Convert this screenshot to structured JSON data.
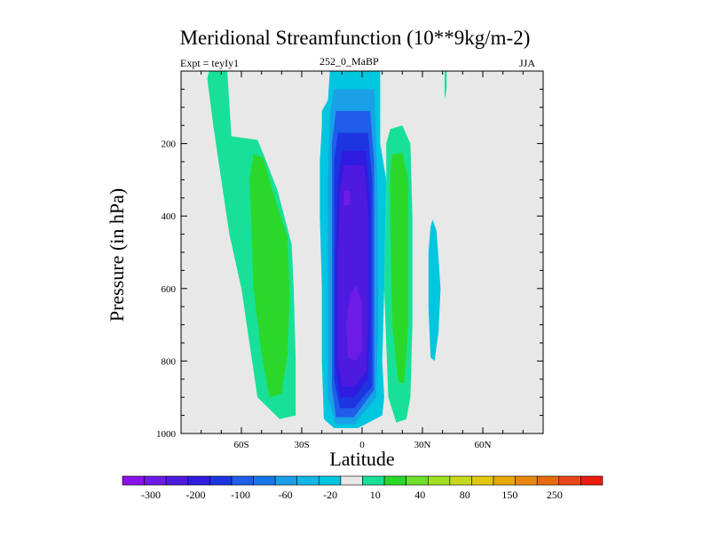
{
  "chart_data": {
    "type": "heatmap",
    "title": "Meridional Streamfunction (10**9kg/m-2)",
    "subtitle_left": "Expt = teyIy1",
    "subtitle_center": "252_0_MaBP",
    "subtitle_right": "JJA",
    "xlabel": "Latitude",
    "ylabel": "Pressure (in hPa)",
    "xlim": [
      -90,
      90
    ],
    "ylim": [
      1000,
      0
    ],
    "x_ticks": [
      {
        "value": -60,
        "label": "60S"
      },
      {
        "value": -30,
        "label": "30S"
      },
      {
        "value": 0,
        "label": "0"
      },
      {
        "value": 30,
        "label": "30N"
      },
      {
        "value": 60,
        "label": "60N"
      }
    ],
    "y_ticks": [
      {
        "value": 200,
        "label": "200"
      },
      {
        "value": 400,
        "label": "400"
      },
      {
        "value": 600,
        "label": "600"
      },
      {
        "value": 800,
        "label": "800"
      },
      {
        "value": 1000,
        "label": "1000"
      }
    ],
    "background_color": "#e8e8e8",
    "colorbar": {
      "colors": [
        "#8a12e8",
        "#6d1be6",
        "#4f1ae0",
        "#2f1ce0",
        "#1c35e0",
        "#1e5ee8",
        "#1877e8",
        "#1aa0e6",
        "#13b7e6",
        "#00c6e0",
        "#e8e8e8",
        "#18e098",
        "#2ad82a",
        "#6ee02a",
        "#a0e01e",
        "#c8d81c",
        "#e0c810",
        "#e8a808",
        "#e88810",
        "#e86a10",
        "#e84818",
        "#e81e10"
      ],
      "labels": [
        "-300",
        "-200",
        "-100",
        "-60",
        "-20",
        "10",
        "40",
        "80",
        "150",
        "250"
      ]
    },
    "regions": [
      {
        "name": "shaded-10-40-sh-tall",
        "level": "10 to 40",
        "color": "#18e098",
        "points": [
          [
            -76,
            0
          ],
          [
            -67,
            0
          ],
          [
            -65,
            180
          ],
          [
            -52,
            190
          ],
          [
            -49,
            230
          ],
          [
            -42,
            330
          ],
          [
            -35,
            480
          ],
          [
            -34,
            600
          ],
          [
            -33,
            800
          ],
          [
            -33,
            950
          ],
          [
            -41,
            960
          ],
          [
            -52,
            900
          ],
          [
            -60,
            600
          ],
          [
            -66,
            450
          ],
          [
            -70,
            300
          ],
          [
            -74,
            150
          ],
          [
            -77,
            20
          ]
        ]
      },
      {
        "name": "shaded-40-80-sh",
        "level": "40 to 80",
        "color": "#2ad82a",
        "points": [
          [
            -54,
            230
          ],
          [
            -49,
            240
          ],
          [
            -44,
            340
          ],
          [
            -37,
            460
          ],
          [
            -36,
            620
          ],
          [
            -37,
            780
          ],
          [
            -40,
            890
          ],
          [
            -46,
            900
          ],
          [
            -50,
            780
          ],
          [
            -54,
            600
          ],
          [
            -55,
            420
          ],
          [
            -56,
            300
          ]
        ]
      },
      {
        "name": "shaded-minus20-minus10-tropics",
        "level": "-20 to -10",
        "color": "#00c6e0",
        "points": [
          [
            -16,
            0
          ],
          [
            9,
            0
          ],
          [
            9,
            200
          ],
          [
            12,
            300
          ],
          [
            11,
            600
          ],
          [
            10,
            800
          ],
          [
            11,
            900
          ],
          [
            10,
            950
          ],
          [
            -2,
            985
          ],
          [
            -14,
            985
          ],
          [
            -19,
            960
          ],
          [
            -20,
            800
          ],
          [
            -20,
            600
          ],
          [
            -21,
            400
          ],
          [
            -21,
            250
          ],
          [
            -20,
            150
          ],
          [
            -20,
            110
          ],
          [
            -17,
            80
          ]
        ]
      },
      {
        "name": "shaded-minus60-minus20",
        "level": "-60 to -20",
        "color": "#1aa0e6",
        "points": [
          [
            -14,
            50
          ],
          [
            6,
            50
          ],
          [
            7,
            200
          ],
          [
            8,
            400
          ],
          [
            8,
            700
          ],
          [
            7,
            900
          ],
          [
            -4,
            975
          ],
          [
            -13,
            975
          ],
          [
            -17,
            900
          ],
          [
            -17,
            600
          ],
          [
            -17,
            300
          ],
          [
            -16,
            120
          ]
        ]
      },
      {
        "name": "shaded-minus60-minus40",
        "level": "-60 to -40",
        "color": "#1e5ee8",
        "points": [
          [
            -13,
            110
          ],
          [
            4,
            110
          ],
          [
            6,
            250
          ],
          [
            6,
            700
          ],
          [
            6,
            880
          ],
          [
            -4,
            955
          ],
          [
            -13,
            955
          ],
          [
            -15,
            870
          ],
          [
            -15,
            500
          ],
          [
            -15,
            200
          ]
        ]
      },
      {
        "name": "shaded-minus100-minus60",
        "level": "-100 to -60",
        "color": "#1c35e0",
        "points": [
          [
            -12,
            170
          ],
          [
            3,
            170
          ],
          [
            5,
            300
          ],
          [
            5,
            700
          ],
          [
            5,
            870
          ],
          [
            -4,
            930
          ],
          [
            -11,
            930
          ],
          [
            -14,
            850
          ],
          [
            -14,
            500
          ],
          [
            -14,
            250
          ]
        ]
      },
      {
        "name": "shaded-minus150-minus100",
        "level": "-150 to -100",
        "color": "#2f1ce0",
        "points": [
          [
            -10,
            220
          ],
          [
            2,
            220
          ],
          [
            4,
            350
          ],
          [
            4,
            700
          ],
          [
            3,
            850
          ],
          [
            -4,
            900
          ],
          [
            -11,
            900
          ],
          [
            -13,
            820
          ],
          [
            -13,
            500
          ],
          [
            -12,
            300
          ]
        ]
      },
      {
        "name": "shaded-minus200-minus150",
        "level": "-200 to -150",
        "color": "#4f1ae0",
        "points": [
          [
            -9,
            260
          ],
          [
            1,
            260
          ],
          [
            3,
            400
          ],
          [
            3,
            700
          ],
          [
            2,
            830
          ],
          [
            -4,
            870
          ],
          [
            -10,
            870
          ],
          [
            -12,
            800
          ],
          [
            -12,
            500
          ],
          [
            -11,
            330
          ]
        ]
      },
      {
        "name": "shaded-minus250-minus200",
        "level": "-250 to -200",
        "color": "#6d1be6",
        "points": [
          [
            -3,
            590
          ],
          [
            0,
            640
          ],
          [
            0,
            770
          ],
          [
            -3,
            800
          ],
          [
            -7,
            790
          ],
          [
            -8,
            700
          ],
          [
            -6,
            620
          ]
        ]
      },
      {
        "name": "shaded-minus250-minus200-upper",
        "level": "-250 to -200",
        "color": "#6d1be6",
        "points": [
          [
            -9,
            330
          ],
          [
            -6,
            330
          ],
          [
            -6,
            370
          ],
          [
            -9,
            370
          ]
        ]
      },
      {
        "name": "shaded-10-40-nh-sub",
        "level": "10 to 40",
        "color": "#18e098",
        "points": [
          [
            14,
            160
          ],
          [
            20,
            150
          ],
          [
            24,
            200
          ],
          [
            25,
            400
          ],
          [
            25,
            700
          ],
          [
            24,
            900
          ],
          [
            22,
            960
          ],
          [
            17,
            970
          ],
          [
            13,
            900
          ],
          [
            11,
            600
          ],
          [
            12,
            300
          ],
          [
            12,
            200
          ]
        ]
      },
      {
        "name": "shaded-40-80-nh-sub",
        "level": "40 to 80",
        "color": "#2ad82a",
        "points": [
          [
            15,
            230
          ],
          [
            20,
            225
          ],
          [
            23,
            300
          ],
          [
            23,
            700
          ],
          [
            21,
            860
          ],
          [
            18,
            860
          ],
          [
            15,
            700
          ],
          [
            14,
            400
          ],
          [
            14,
            280
          ]
        ]
      },
      {
        "name": "shaded-minus20-minus10-nh-cell",
        "level": "-20 to -10",
        "color": "#00c6e0",
        "points": [
          [
            35,
            410
          ],
          [
            37,
            440
          ],
          [
            39,
            600
          ],
          [
            38,
            720
          ],
          [
            36,
            800
          ],
          [
            34,
            790
          ],
          [
            33,
            650
          ],
          [
            33,
            500
          ],
          [
            34,
            430
          ]
        ]
      },
      {
        "name": "shaded-10-40-nh-tip",
        "level": "10 to 40",
        "color": "#18e098",
        "points": [
          [
            41,
            0
          ],
          [
            42,
            0
          ],
          [
            42,
            50
          ],
          [
            41,
            80
          ],
          [
            41,
            40
          ]
        ]
      }
    ]
  }
}
